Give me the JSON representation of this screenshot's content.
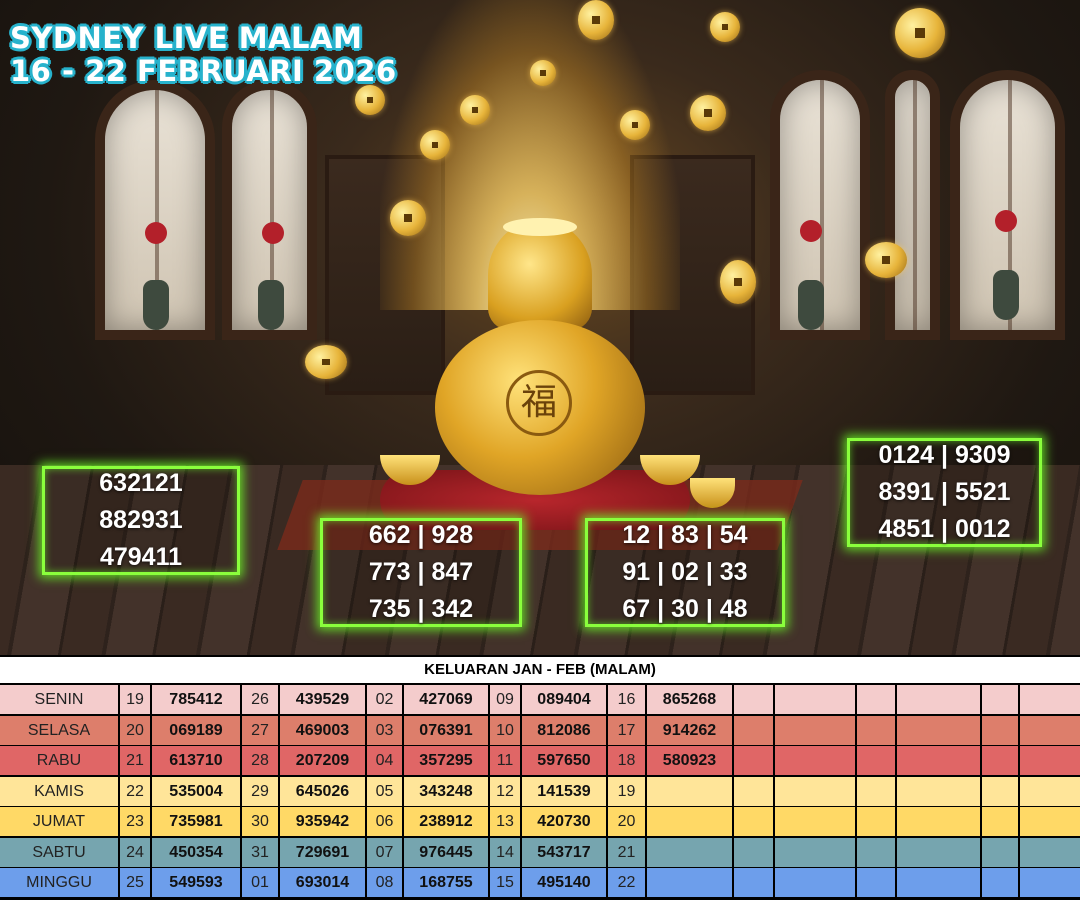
{
  "title": {
    "line1": "SYDNEY LIVE MALAM",
    "line2": "16 - 22 FEBRUARI 2026"
  },
  "predictions": {
    "box1": [
      "632121",
      "882931",
      "479411"
    ],
    "box2": [
      "662 | 928",
      "773 | 847",
      "735 | 342"
    ],
    "box3": [
      "12 | 83 | 54",
      "91 | 02 | 33",
      "67 | 30 | 48"
    ],
    "box4": [
      "0124 | 9309",
      "8391 | 5521",
      "4851 | 0012"
    ]
  },
  "results": {
    "header": "KELUARAN JAN - FEB (MALAM)",
    "rows": [
      {
        "day": "SENIN",
        "color": "#f4cccc",
        "cells": [
          "19",
          "785412",
          "26",
          "439529",
          "02",
          "427069",
          "09",
          "089404",
          "16",
          "865268"
        ]
      },
      {
        "day": "SELASA",
        "color": "#dd7e6b",
        "cells": [
          "20",
          "069189",
          "27",
          "469003",
          "03",
          "076391",
          "10",
          "812086",
          "17",
          "914262"
        ]
      },
      {
        "day": "RABU",
        "color": "#e06666",
        "cells": [
          "21",
          "613710",
          "28",
          "207209",
          "04",
          "357295",
          "11",
          "597650",
          "18",
          "580923"
        ]
      },
      {
        "day": "KAMIS",
        "color": "#ffe599",
        "cells": [
          "22",
          "535004",
          "29",
          "645026",
          "05",
          "343248",
          "12",
          "141539",
          "19",
          ""
        ]
      },
      {
        "day": "JUMAT",
        "color": "#ffd966",
        "cells": [
          "23",
          "735981",
          "30",
          "935942",
          "06",
          "238912",
          "13",
          "420730",
          "20",
          ""
        ]
      },
      {
        "day": "SABTU",
        "color": "#76a5af",
        "cells": [
          "24",
          "450354",
          "31",
          "729691",
          "07",
          "976445",
          "14",
          "543717",
          "21",
          ""
        ]
      },
      {
        "day": "MINGGU",
        "color": "#6d9eeb",
        "cells": [
          "25",
          "549593",
          "01",
          "693014",
          "08",
          "168755",
          "15",
          "495140",
          "22",
          ""
        ]
      }
    ]
  }
}
